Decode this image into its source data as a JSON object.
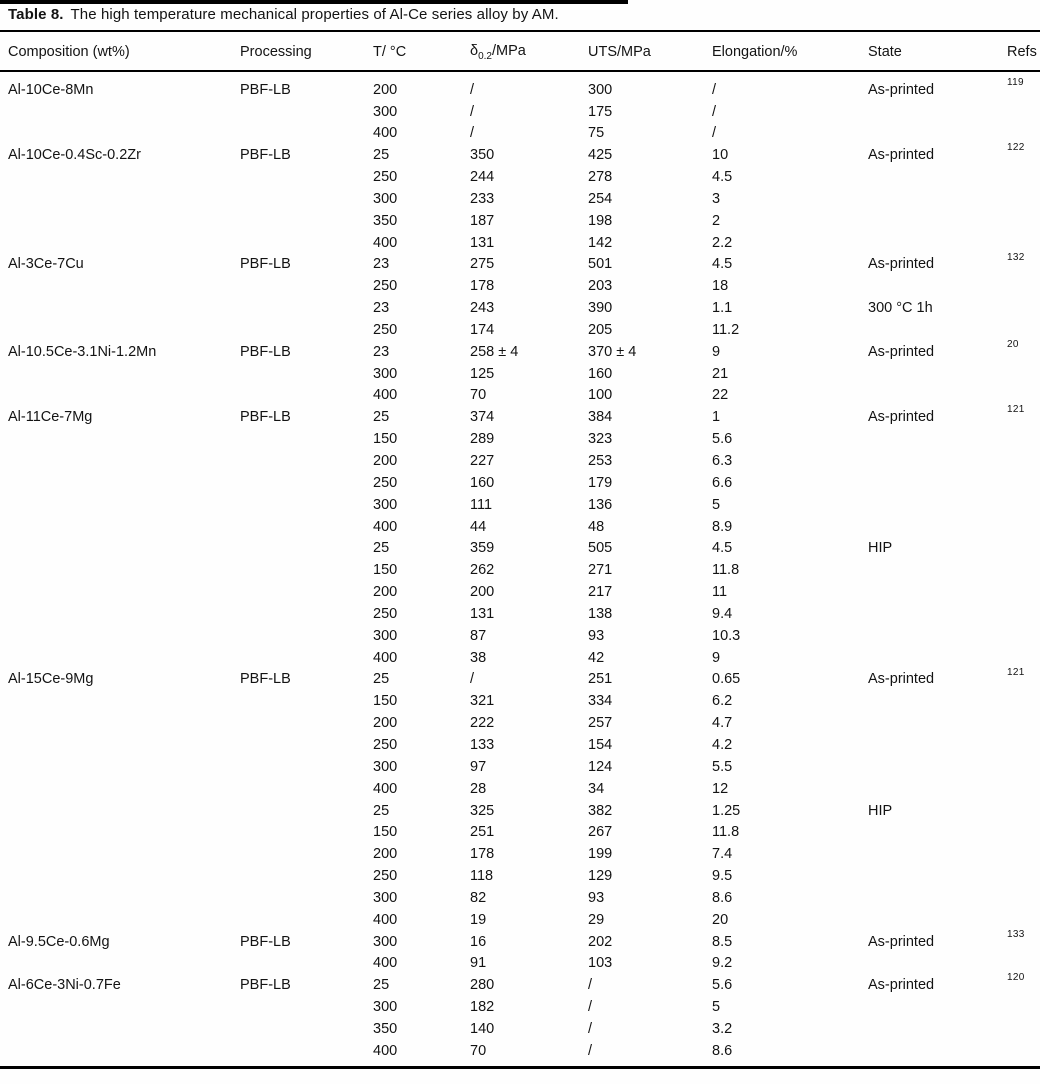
{
  "title": {
    "label": "Table 8.",
    "text": "The high temperature mechanical properties of Al-Ce series alloy by AM."
  },
  "columns": [
    {
      "key": "composition",
      "label": "Composition (wt%)"
    },
    {
      "key": "processing",
      "label": "Processing"
    },
    {
      "key": "temperature",
      "label": "T/ °C"
    },
    {
      "key": "yield",
      "label_prefix": "δ",
      "label_sub": "0.2",
      "label_suffix": "/MPa"
    },
    {
      "key": "uts",
      "label": "UTS/MPa"
    },
    {
      "key": "elongation",
      "label": "Elongation/%"
    },
    {
      "key": "state",
      "label": "State"
    },
    {
      "key": "refs",
      "label": "Refs"
    }
  ],
  "groups": [
    {
      "composition": "Al-10Ce-8Mn",
      "processing": "PBF-LB",
      "ref": "119",
      "rows": [
        {
          "t": "200",
          "ys": "/",
          "uts": "300",
          "el": "/",
          "state": "As-printed"
        },
        {
          "t": "300",
          "ys": "/",
          "uts": "175",
          "el": "/",
          "state": ""
        },
        {
          "t": "400",
          "ys": "/",
          "uts": "75",
          "el": "/",
          "state": ""
        }
      ]
    },
    {
      "composition": "Al-10Ce-0.4Sc-0.2Zr",
      "processing": "PBF-LB",
      "ref": "122",
      "rows": [
        {
          "t": "25",
          "ys": "350",
          "uts": "425",
          "el": "10",
          "state": "As-printed"
        },
        {
          "t": "250",
          "ys": "244",
          "uts": "278",
          "el": "4.5",
          "state": ""
        },
        {
          "t": "300",
          "ys": "233",
          "uts": "254",
          "el": "3",
          "state": ""
        },
        {
          "t": "350",
          "ys": "187",
          "uts": "198",
          "el": "2",
          "state": ""
        },
        {
          "t": "400",
          "ys": "131",
          "uts": "142",
          "el": "2.2",
          "state": ""
        }
      ]
    },
    {
      "composition": "Al-3Ce-7Cu",
      "processing": "PBF-LB",
      "ref": "132",
      "rows": [
        {
          "t": "23",
          "ys": "275",
          "uts": "501",
          "el": "4.5",
          "state": "As-printed"
        },
        {
          "t": "250",
          "ys": "178",
          "uts": "203",
          "el": "18",
          "state": ""
        },
        {
          "t": "23",
          "ys": "243",
          "uts": "390",
          "el": "1.1",
          "state": "300 °C 1h"
        },
        {
          "t": "250",
          "ys": "174",
          "uts": "205",
          "el": "11.2",
          "state": ""
        }
      ]
    },
    {
      "composition": "Al-10.5Ce-3.1Ni-1.2Mn",
      "processing": "PBF-LB",
      "ref": "20",
      "rows": [
        {
          "t": "23",
          "ys": "258 ± 4",
          "uts": "370 ± 4",
          "el": "9",
          "state": "As-printed"
        },
        {
          "t": "300",
          "ys": "125",
          "uts": "160",
          "el": "21",
          "state": ""
        },
        {
          "t": "400",
          "ys": "70",
          "uts": "100",
          "el": "22",
          "state": ""
        }
      ]
    },
    {
      "composition": "Al-11Ce-7Mg",
      "processing": "PBF-LB",
      "ref": "121",
      "rows": [
        {
          "t": "25",
          "ys": "374",
          "uts": "384",
          "el": "1",
          "state": "As-printed"
        },
        {
          "t": "150",
          "ys": "289",
          "uts": "323",
          "el": "5.6",
          "state": ""
        },
        {
          "t": "200",
          "ys": "227",
          "uts": "253",
          "el": "6.3",
          "state": ""
        },
        {
          "t": "250",
          "ys": "160",
          "uts": "179",
          "el": "6.6",
          "state": ""
        },
        {
          "t": "300",
          "ys": "111",
          "uts": "136",
          "el": "5",
          "state": ""
        },
        {
          "t": "400",
          "ys": "44",
          "uts": "48",
          "el": "8.9",
          "state": ""
        },
        {
          "t": "25",
          "ys": "359",
          "uts": "505",
          "el": "4.5",
          "state": "HIP"
        },
        {
          "t": "150",
          "ys": "262",
          "uts": "271",
          "el": "11.8",
          "state": ""
        },
        {
          "t": "200",
          "ys": "200",
          "uts": "217",
          "el": "11",
          "state": ""
        },
        {
          "t": "250",
          "ys": "131",
          "uts": "138",
          "el": "9.4",
          "state": ""
        },
        {
          "t": "300",
          "ys": "87",
          "uts": "93",
          "el": "10.3",
          "state": ""
        },
        {
          "t": "400",
          "ys": "38",
          "uts": "42",
          "el": "9",
          "state": ""
        }
      ]
    },
    {
      "composition": "Al-15Ce-9Mg",
      "processing": "PBF-LB",
      "ref": "121",
      "rows": [
        {
          "t": "25",
          "ys": "/",
          "uts": "251",
          "el": "0.65",
          "state": "As-printed"
        },
        {
          "t": "150",
          "ys": "321",
          "uts": "334",
          "el": "6.2",
          "state": ""
        },
        {
          "t": "200",
          "ys": "222",
          "uts": "257",
          "el": "4.7",
          "state": ""
        },
        {
          "t": "250",
          "ys": "133",
          "uts": "154",
          "el": "4.2",
          "state": ""
        },
        {
          "t": "300",
          "ys": "97",
          "uts": "124",
          "el": "5.5",
          "state": ""
        },
        {
          "t": "400",
          "ys": "28",
          "uts": "34",
          "el": "12",
          "state": ""
        },
        {
          "t": "25",
          "ys": "325",
          "uts": "382",
          "el": "1.25",
          "state": "HIP"
        },
        {
          "t": "150",
          "ys": "251",
          "uts": "267",
          "el": "11.8",
          "state": ""
        },
        {
          "t": "200",
          "ys": "178",
          "uts": "199",
          "el": "7.4",
          "state": ""
        },
        {
          "t": "250",
          "ys": "118",
          "uts": "129",
          "el": "9.5",
          "state": ""
        },
        {
          "t": "300",
          "ys": "82",
          "uts": "93",
          "el": "8.6",
          "state": ""
        },
        {
          "t": "400",
          "ys": "19",
          "uts": "29",
          "el": "20",
          "state": ""
        }
      ]
    },
    {
      "composition": "Al-9.5Ce-0.6Mg",
      "processing": "PBF-LB",
      "ref": "133",
      "rows": [
        {
          "t": "300",
          "ys": "16",
          "uts": "202",
          "el": "8.5",
          "state": "As-printed"
        },
        {
          "t": "400",
          "ys": "91",
          "uts": "103",
          "el": "9.2",
          "state": ""
        }
      ]
    },
    {
      "composition": "Al-6Ce-3Ni-0.7Fe",
      "processing": "PBF-LB",
      "ref": "120",
      "rows": [
        {
          "t": "25",
          "ys": "280",
          "uts": "/",
          "el": "5.6",
          "state": "As-printed"
        },
        {
          "t": "300",
          "ys": "182",
          "uts": "/",
          "el": "5",
          "state": ""
        },
        {
          "t": "350",
          "ys": "140",
          "uts": "/",
          "el": "3.2",
          "state": ""
        },
        {
          "t": "400",
          "ys": "70",
          "uts": "/",
          "el": "8.6",
          "state": ""
        }
      ]
    }
  ]
}
